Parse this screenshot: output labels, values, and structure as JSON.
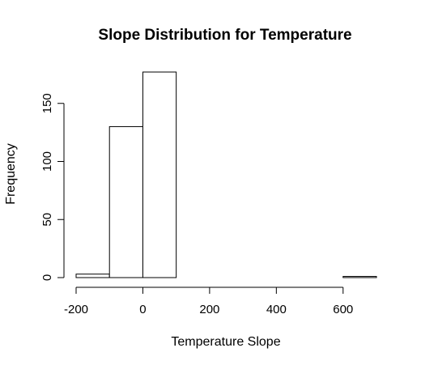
{
  "chart_data": {
    "type": "bar",
    "title": "Slope Distribution for Temperature",
    "xlabel": "Temperature Slope",
    "ylabel": "Frequency",
    "bins": [
      {
        "x0": -200,
        "x1": -100,
        "count": 3
      },
      {
        "x0": -100,
        "x1": 0,
        "count": 130
      },
      {
        "x0": 0,
        "x1": 100,
        "count": 177
      },
      {
        "x0": 100,
        "x1": 200,
        "count": 0
      },
      {
        "x0": 200,
        "x1": 300,
        "count": 0
      },
      {
        "x0": 300,
        "x1": 400,
        "count": 0
      },
      {
        "x0": 400,
        "x1": 500,
        "count": 0
      },
      {
        "x0": 500,
        "x1": 600,
        "count": 0
      },
      {
        "x0": 600,
        "x1": 700,
        "count": 1
      }
    ],
    "xticks": [
      -200,
      0,
      200,
      400,
      600
    ],
    "yticks": [
      0,
      50,
      100,
      150
    ],
    "xlim": [
      -200,
      700
    ],
    "ylim": [
      0,
      177
    ],
    "grid": false
  }
}
